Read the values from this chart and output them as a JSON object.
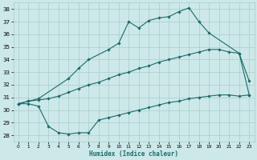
{
  "xlabel": "Humidex (Indice chaleur)",
  "ylabel": "",
  "bg_color": "#cde8e8",
  "grid_color": "#a8cccc",
  "line_color": "#1a6b6b",
  "xlim": [
    -0.5,
    23.5
  ],
  "ylim": [
    27.5,
    38.5
  ],
  "yticks": [
    28,
    29,
    30,
    31,
    32,
    33,
    34,
    35,
    36,
    37,
    38
  ],
  "xticks": [
    0,
    1,
    2,
    3,
    4,
    5,
    6,
    7,
    8,
    9,
    10,
    11,
    12,
    13,
    14,
    15,
    16,
    17,
    18,
    19,
    20,
    21,
    22,
    23
  ],
  "curve_max": [
    [
      0,
      30.5
    ],
    [
      1,
      30.7
    ],
    [
      2,
      30.9
    ],
    [
      5,
      32.5
    ],
    [
      6,
      33.3
    ],
    [
      7,
      34.0
    ],
    [
      9,
      34.8
    ],
    [
      10,
      35.3
    ],
    [
      11,
      37.0
    ],
    [
      12,
      36.5
    ],
    [
      13,
      37.1
    ],
    [
      14,
      37.3
    ],
    [
      15,
      37.4
    ],
    [
      16,
      37.8
    ],
    [
      17,
      38.1
    ],
    [
      18,
      37.0
    ],
    [
      19,
      36.1
    ],
    [
      22,
      34.5
    ],
    [
      23,
      32.3
    ]
  ],
  "curve_mid": [
    [
      0,
      30.5
    ],
    [
      1,
      30.7
    ],
    [
      2,
      30.8
    ],
    [
      3,
      30.9
    ],
    [
      4,
      31.1
    ],
    [
      5,
      31.4
    ],
    [
      6,
      31.7
    ],
    [
      7,
      32.0
    ],
    [
      8,
      32.2
    ],
    [
      9,
      32.5
    ],
    [
      10,
      32.8
    ],
    [
      11,
      33.0
    ],
    [
      12,
      33.3
    ],
    [
      13,
      33.5
    ],
    [
      14,
      33.8
    ],
    [
      15,
      34.0
    ],
    [
      16,
      34.2
    ],
    [
      17,
      34.4
    ],
    [
      18,
      34.6
    ],
    [
      19,
      34.8
    ],
    [
      20,
      34.8
    ],
    [
      21,
      34.6
    ],
    [
      22,
      34.5
    ],
    [
      23,
      31.2
    ]
  ],
  "curve_min": [
    [
      0,
      30.5
    ],
    [
      1,
      30.5
    ],
    [
      2,
      30.3
    ],
    [
      3,
      28.7
    ],
    [
      4,
      28.2
    ],
    [
      5,
      28.1
    ],
    [
      6,
      28.2
    ],
    [
      7,
      28.2
    ],
    [
      8,
      29.2
    ],
    [
      9,
      29.4
    ],
    [
      10,
      29.6
    ],
    [
      11,
      29.8
    ],
    [
      12,
      30.0
    ],
    [
      13,
      30.2
    ],
    [
      14,
      30.4
    ],
    [
      15,
      30.6
    ],
    [
      16,
      30.7
    ],
    [
      17,
      30.9
    ],
    [
      18,
      31.0
    ],
    [
      19,
      31.1
    ],
    [
      20,
      31.2
    ],
    [
      21,
      31.2
    ],
    [
      22,
      31.1
    ],
    [
      23,
      31.2
    ]
  ]
}
